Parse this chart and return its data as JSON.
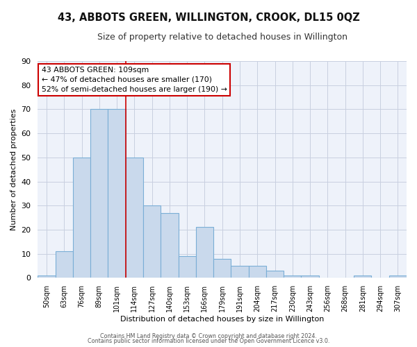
{
  "title": "43, ABBOTS GREEN, WILLINGTON, CROOK, DL15 0QZ",
  "subtitle": "Size of property relative to detached houses in Willington",
  "xlabel": "Distribution of detached houses by size in Willington",
  "ylabel": "Number of detached properties",
  "bar_labels": [
    "50sqm",
    "63sqm",
    "76sqm",
    "89sqm",
    "101sqm",
    "114sqm",
    "127sqm",
    "140sqm",
    "153sqm",
    "166sqm",
    "179sqm",
    "191sqm",
    "204sqm",
    "217sqm",
    "230sqm",
    "243sqm",
    "256sqm",
    "268sqm",
    "281sqm",
    "294sqm",
    "307sqm"
  ],
  "bar_values": [
    1,
    11,
    50,
    70,
    70,
    50,
    30,
    27,
    9,
    21,
    8,
    5,
    5,
    3,
    1,
    1,
    0,
    0,
    1,
    0,
    1
  ],
  "bar_color": "#c9d9ec",
  "bar_edge_color": "#7aaed6",
  "vline_x": 4.5,
  "ylim": [
    0,
    90
  ],
  "yticks": [
    0,
    10,
    20,
    30,
    40,
    50,
    60,
    70,
    80,
    90
  ],
  "annotation_title": "43 ABBOTS GREEN: 109sqm",
  "annotation_line1": "← 47% of detached houses are smaller (170)",
  "annotation_line2": "52% of semi-detached houses are larger (190) →",
  "footnote1": "Contains HM Land Registry data © Crown copyright and database right 2024.",
  "footnote2": "Contains public sector information licensed under the Open Government Licence v3.0.",
  "vline_color": "#cc0000",
  "annotation_box_edge": "#cc0000",
  "plot_bg_color": "#eef2fa",
  "fig_bg_color": "#ffffff",
  "grid_color": "#c8cfe0"
}
